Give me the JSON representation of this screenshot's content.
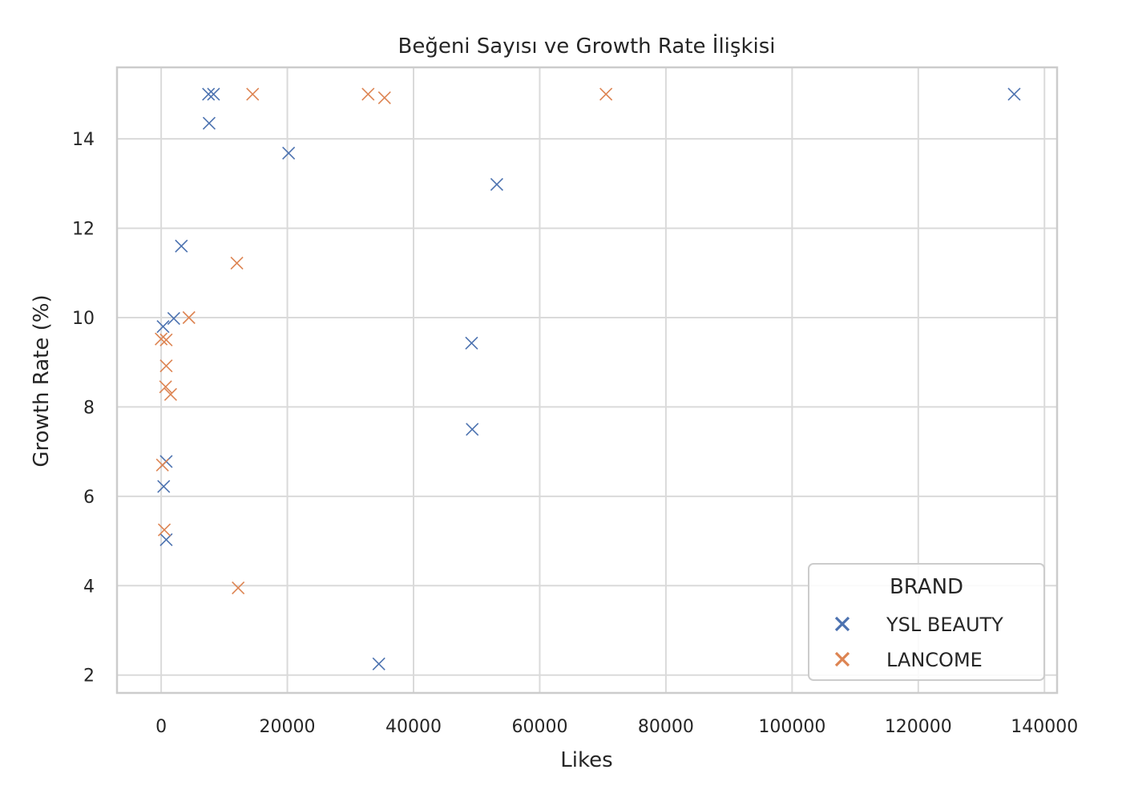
{
  "chart_data": {
    "type": "scatter",
    "title": "Beğeni Sayısı ve Growth Rate İlişkisi",
    "xlabel": "Likes",
    "ylabel": "Growth Rate (%)",
    "xlim": [
      -7000,
      142000
    ],
    "ylim": [
      1.6,
      15.6
    ],
    "xticks": [
      0,
      20000,
      40000,
      60000,
      80000,
      100000,
      120000,
      140000
    ],
    "xtick_labels": [
      "0",
      "20000",
      "40000",
      "60000",
      "80000",
      "100000",
      "120000",
      "140000"
    ],
    "yticks": [
      2,
      4,
      6,
      8,
      10,
      12,
      14
    ],
    "ytick_labels": [
      "2",
      "4",
      "6",
      "8",
      "10",
      "12",
      "14"
    ],
    "grid": true,
    "marker": "x",
    "legend": {
      "title": "BRAND",
      "placement": "lower-right"
    },
    "series": [
      {
        "name": "YSL BEAUTY",
        "color": "#4c72b0",
        "points": [
          {
            "x": 7500,
            "y": 15.0
          },
          {
            "x": 8300,
            "y": 15.0
          },
          {
            "x": 7600,
            "y": 14.35
          },
          {
            "x": 20200,
            "y": 13.68
          },
          {
            "x": 53200,
            "y": 12.98
          },
          {
            "x": 3200,
            "y": 11.6
          },
          {
            "x": 2000,
            "y": 9.98
          },
          {
            "x": 300,
            "y": 9.8
          },
          {
            "x": 49200,
            "y": 9.43
          },
          {
            "x": 49300,
            "y": 7.5
          },
          {
            "x": 800,
            "y": 6.78
          },
          {
            "x": 400,
            "y": 6.22
          },
          {
            "x": 800,
            "y": 5.03
          },
          {
            "x": 34500,
            "y": 2.25
          },
          {
            "x": 135200,
            "y": 15.0
          }
        ]
      },
      {
        "name": "LANCOME",
        "color": "#dd8452",
        "points": [
          {
            "x": 14500,
            "y": 15.0
          },
          {
            "x": 32800,
            "y": 15.0
          },
          {
            "x": 35400,
            "y": 14.92
          },
          {
            "x": 70500,
            "y": 15.0
          },
          {
            "x": 12000,
            "y": 11.22
          },
          {
            "x": 4400,
            "y": 10.0
          },
          {
            "x": 0,
            "y": 9.52
          },
          {
            "x": 800,
            "y": 9.5
          },
          {
            "x": 800,
            "y": 8.92
          },
          {
            "x": 700,
            "y": 8.45
          },
          {
            "x": 1500,
            "y": 8.28
          },
          {
            "x": 200,
            "y": 6.7
          },
          {
            "x": 500,
            "y": 5.25
          },
          {
            "x": 12200,
            "y": 3.95
          }
        ]
      }
    ]
  }
}
